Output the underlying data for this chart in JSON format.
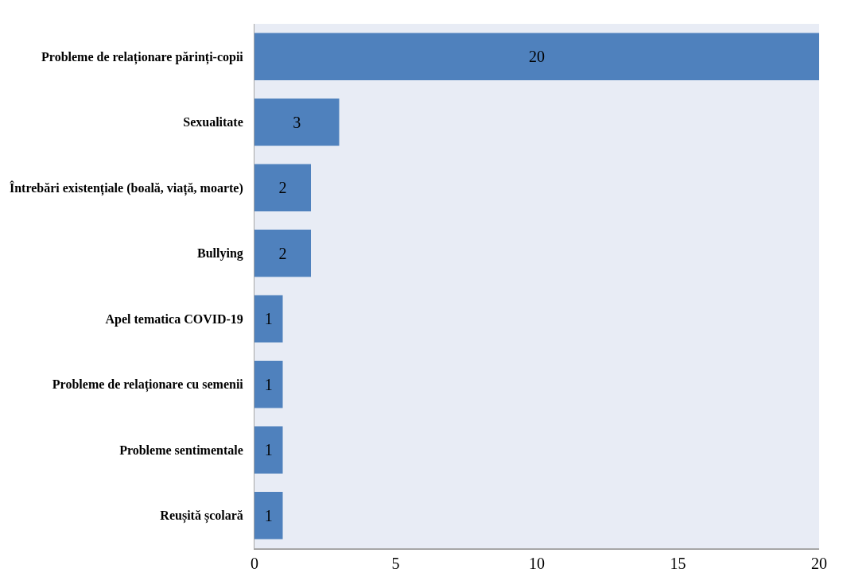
{
  "chart_data": {
    "type": "bar",
    "orientation": "horizontal",
    "categories": [
      "Probleme de relaționare părinți-copii",
      "Sexualitate",
      "Întrebări existențiale (boală, viață, moarte)",
      "Bullying",
      "Apel tematica COVID-19",
      "Probleme de relaționare cu semenii",
      "Probleme sentimentale",
      "Reușită școlară"
    ],
    "values": [
      20,
      3,
      2,
      2,
      1,
      1,
      1,
      1
    ],
    "color": "#4f81bd",
    "xlim": [
      0,
      20
    ],
    "xticks": [
      0,
      5,
      10,
      15,
      20
    ],
    "grid": false,
    "legend": false,
    "data_labels": true
  }
}
